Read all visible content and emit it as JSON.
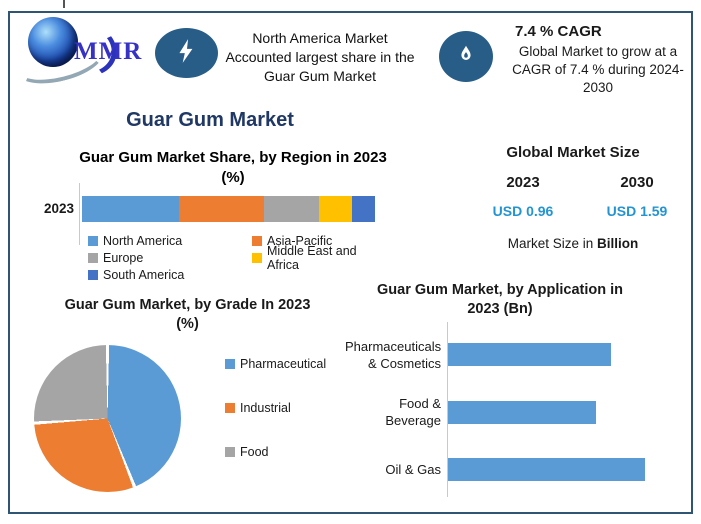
{
  "header": {
    "logo": {
      "text": "MMR"
    },
    "highlight": {
      "text": "North America Market\nAccounted largest share in the\nGuar Gum Market"
    },
    "cagr": {
      "title": "7.4 % CAGR",
      "body": "Global Market to grow at a\nCAGR of 7.4 % during 2024-\n2030"
    }
  },
  "main_title": "Guar Gum Market",
  "market_size": {
    "title": "Global Market Size",
    "columns": [
      {
        "year": "2023",
        "value": "USD 0.96"
      },
      {
        "year": "2030",
        "value": "USD 1.59"
      }
    ],
    "note_prefix": "Market Size in ",
    "note_bold": "Billion",
    "value_color": "#2394D2"
  },
  "colors": {
    "accent_navy": "#1F3864",
    "badge_blue": "#275D87",
    "frame_border": "#2E5574",
    "bar_blue": "#5B9BD5"
  },
  "chart_data": [
    {
      "type": "bar",
      "orientation": "horizontal-stacked",
      "title": "Guar Gum Market Share, by Region in 2023 (%)",
      "title_display": "Guar Gum Market Share, by Region in 2023\n(%)",
      "categories": [
        "2023"
      ],
      "series": [
        {
          "name": "North America",
          "values": [
            33
          ],
          "color": "#5B9BD5"
        },
        {
          "name": "Asia-Pacific",
          "values": [
            29
          ],
          "color": "#ED7D31"
        },
        {
          "name": "Europe",
          "values": [
            19
          ],
          "color": "#A5A5A5"
        },
        {
          "name": "Middle East and Africa",
          "values": [
            11
          ],
          "color": "#FFC000"
        },
        {
          "name": "South America",
          "values": [
            8
          ],
          "color": "#4472C4"
        }
      ],
      "xlim": [
        0,
        100
      ],
      "units": "% share (estimated from segment lengths)",
      "legend_position": "bottom",
      "grid": false
    },
    {
      "type": "pie",
      "title": "Guar Gum Market, by Grade In 2023 (%)",
      "title_display": "Guar Gum Market, by Grade In 2023\n(%)",
      "labels": [
        "Pharmaceutical",
        "Industrial",
        "Food"
      ],
      "values": [
        44,
        30,
        26
      ],
      "colors": [
        "#5B9BD5",
        "#ED7D31",
        "#A5A5A5"
      ],
      "units": "% (estimated from slice angles)",
      "legend_position": "right"
    },
    {
      "type": "bar",
      "orientation": "horizontal",
      "title": "Guar Gum Market, by Application in 2023 (Bn)",
      "title_display": "Guar Gum Market, by Application in\n2023 (Bn)",
      "categories": [
        "Pharmaceuticals & Cosmetics",
        "Food & Beverage",
        "Oil & Gas"
      ],
      "values": [
        0.33,
        0.3,
        0.4
      ],
      "bar_color": "#5B9BD5",
      "units": "USD Bn (axis unlabeled; values estimated from relative bar lengths)",
      "grid": false
    }
  ]
}
